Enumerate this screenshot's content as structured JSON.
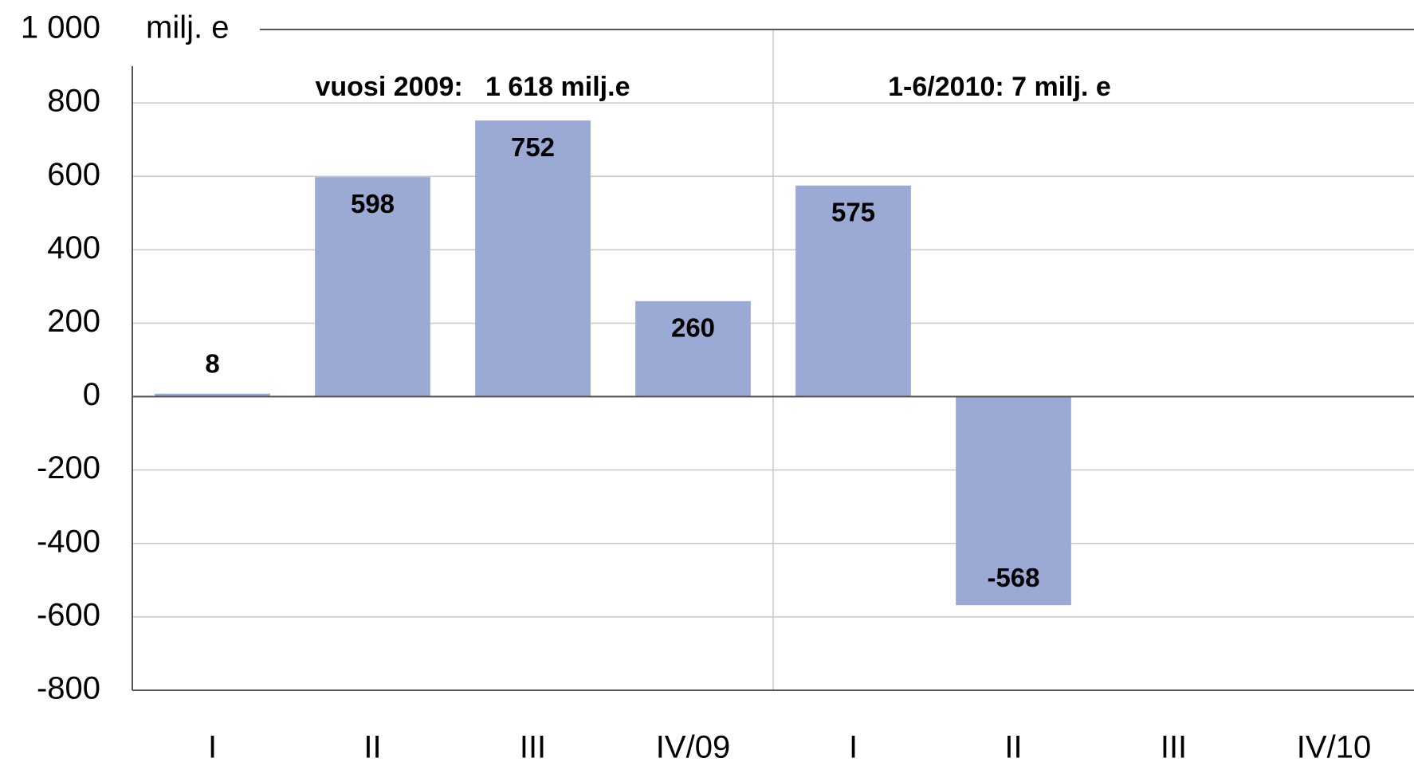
{
  "chart_data": {
    "type": "bar",
    "y_label": "milj. e",
    "annotations": [
      "vuosi 2009:   1 618 milj.e",
      "1-6/2010: 7 milj. e"
    ],
    "categories": [
      "I",
      "II",
      "III",
      "IV/09",
      "I",
      "II",
      "III",
      "IV/10"
    ],
    "values": [
      8,
      598,
      752,
      260,
      575,
      -568,
      null,
      null
    ],
    "color": "#9baad4",
    "ylim": [
      -800,
      1000
    ],
    "yticks": [
      -800,
      -600,
      -400,
      -200,
      0,
      200,
      400,
      600,
      800,
      {
        "value": 1000,
        "label": "1 000"
      }
    ],
    "grid": true
  }
}
